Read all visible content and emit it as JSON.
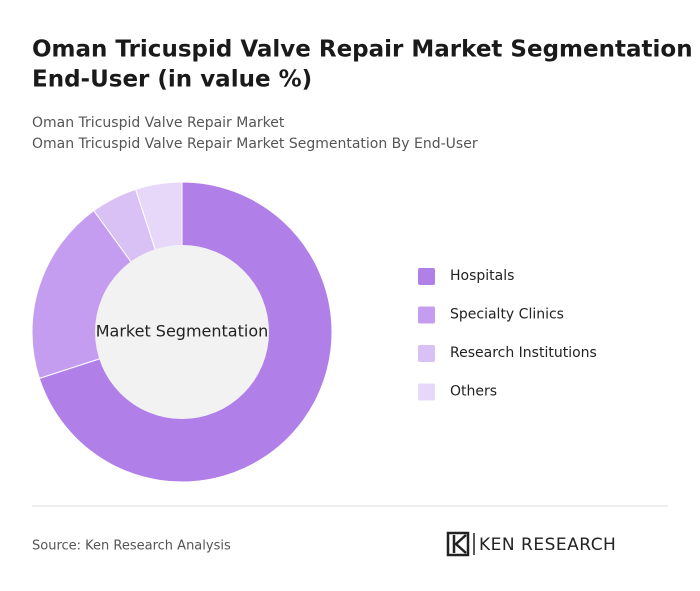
{
  "chart_data": {
    "type": "donut",
    "title": [
      "Oman Tricuspid Valve Repair Market Segmentation By",
      "End-User (in value %)"
    ],
    "subtitle": [
      "Oman Tricuspid Valve Repair Market",
      "Oman Tricuspid Valve Repair Market Segmentation By End-User"
    ],
    "center_label": "Market Segmentation",
    "categories": [
      "Hospitals",
      "Specialty Clinics",
      "Research Institutions",
      "Others"
    ],
    "values": [
      70,
      20,
      5,
      5
    ],
    "colors": [
      "#b07fe8",
      "#c49cf0",
      "#d9c0f5",
      "#e7d7f9"
    ]
  },
  "footer": {
    "source": "Source: Ken Research Analysis",
    "brand": "KEN RESEARCH"
  }
}
